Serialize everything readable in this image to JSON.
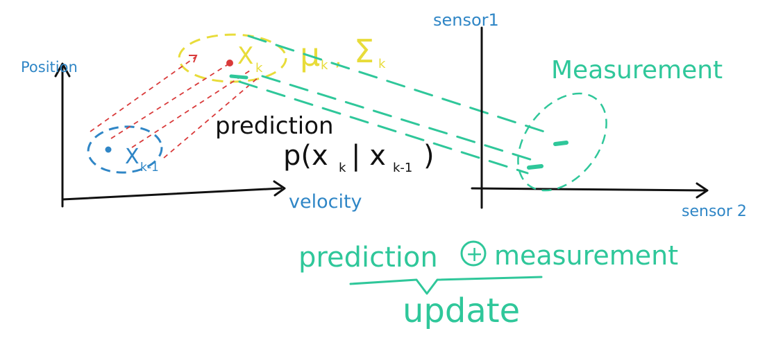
{
  "colors": {
    "blue": "#2f86c6",
    "yellow": "#e8dc3a",
    "green": "#2fc79a",
    "red": "#d93a3a",
    "black": "#111111"
  },
  "left_plot": {
    "y_axis_label": "Position",
    "x_axis_label": "velocity",
    "prev_state_label": "X",
    "prev_state_subscript": "k-1",
    "curr_state_label": "X",
    "curr_state_subscript": "k",
    "stats_mu": "μ",
    "stats_mu_sub": "k",
    "stats_sep": ",",
    "stats_sigma": "Σ",
    "stats_sigma_sub": "k",
    "prediction_label": "prediction",
    "prediction_formula": "p(x",
    "prediction_formula_sub1": "k",
    "prediction_formula_mid": "| x",
    "prediction_formula_sub2": "k-1",
    "prediction_formula_end": ")"
  },
  "right_plot": {
    "y_axis_label": "sensor1",
    "x_axis_label": "sensor 2",
    "measurement_label": "Measurement"
  },
  "bottom": {
    "left_term": "prediction",
    "operator": "+",
    "right_term": "measurement",
    "result": "update"
  }
}
